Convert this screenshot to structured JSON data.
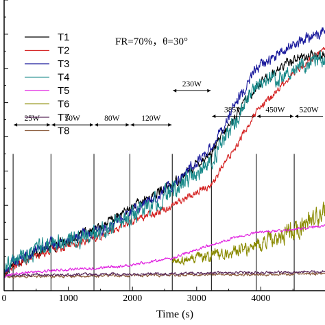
{
  "chart_data": {
    "type": "line",
    "title": "",
    "annotation": "FR=70%，θ=30°",
    "xlabel": "Time (s)",
    "ylabel": "",
    "xlim": [
      0,
      5000
    ],
    "ylim": [
      15,
      100
    ],
    "x_ticks": [
      0,
      1000,
      2000,
      3000,
      4000
    ],
    "x_tick_labels": [
      "0",
      "1000",
      "2000",
      "3000",
      "4000"
    ],
    "grid": false,
    "legend_position": "top-left",
    "step_boundaries": [
      140,
      730,
      1400,
      1960,
      2620,
      3230,
      3930,
      4520
    ],
    "power_steps": [
      {
        "label": "25W",
        "x_start": 140,
        "x_end": 730
      },
      {
        "label": "50W",
        "x_start": 730,
        "x_end": 1400
      },
      {
        "label": "80W",
        "x_start": 1400,
        "x_end": 1960
      },
      {
        "label": "120W",
        "x_start": 1960,
        "x_end": 2620
      },
      {
        "label": "230W",
        "x_start": 2620,
        "x_end": 3230
      },
      {
        "label": "385W",
        "x_start": 3230,
        "x_end": 3930
      },
      {
        "label": "450W",
        "x_start": 3930,
        "x_end": 4520
      },
      {
        "label": "520W",
        "x_start": 4520,
        "x_end": 5000
      }
    ],
    "series": [
      {
        "name": "T1",
        "color": "#000000",
        "noise": 1.1,
        "noise_drift": 0,
        "x": [
          0,
          140,
          730,
          1400,
          1960,
          2620,
          3230,
          3930,
          4520,
          5000
        ],
        "values": [
          20,
          23,
          28,
          32.5,
          39,
          46,
          55.5,
          75,
          83,
          84
        ]
      },
      {
        "name": "T2",
        "color": "#d42020",
        "noise": 0.8,
        "noise_drift": 0,
        "x": [
          0,
          140,
          730,
          1400,
          1960,
          2620,
          3230,
          3930,
          4520,
          5000
        ],
        "values": [
          20,
          22,
          27,
          30,
          35,
          40,
          46,
          67,
          79,
          86
        ]
      },
      {
        "name": "T3",
        "color": "#1a1a9c",
        "noise": 1.2,
        "noise_drift": 0,
        "x": [
          0,
          140,
          730,
          1400,
          1960,
          2620,
          3230,
          3930,
          4520,
          5000
        ],
        "values": [
          20,
          23.5,
          28.5,
          32,
          37.5,
          46,
          57,
          80,
          87,
          91
        ]
      },
      {
        "name": "T4",
        "color": "#1a8a8a",
        "noise": 2.0,
        "noise_drift": 0,
        "x": [
          0,
          140,
          730,
          1400,
          1960,
          2620,
          3230,
          3930,
          4520,
          5000
        ],
        "values": [
          20,
          23.5,
          28.5,
          31.5,
          36.5,
          44,
          52.5,
          75,
          80,
          83
        ]
      },
      {
        "name": "T5",
        "color": "#e020e0",
        "noise": 0.3,
        "noise_drift": 0,
        "x": [
          0,
          140,
          730,
          1400,
          1960,
          2620,
          3230,
          3930,
          4520,
          5000
        ],
        "values": [
          19,
          20,
          21,
          21.5,
          22.5,
          24.5,
          28.5,
          32,
          33,
          34
        ]
      },
      {
        "name": "T6",
        "color": "#8a8a00",
        "noise": 1.0,
        "noise_drift": 1.5,
        "x": [
          2620,
          3230,
          3930,
          4520,
          5000
        ],
        "values": [
          23.5,
          25,
          28,
          33,
          37.5
        ]
      },
      {
        "name": "T7",
        "color": "#5a2a5a",
        "noise": 0.3,
        "noise_drift": 0,
        "x": [
          0,
          5000
        ],
        "values": [
          19.5,
          20.5
        ]
      },
      {
        "name": "T8",
        "color": "#8a5a3a",
        "noise": 0.3,
        "noise_drift": 0,
        "x": [
          0,
          5000
        ],
        "values": [
          19,
          20
        ]
      }
    ]
  }
}
